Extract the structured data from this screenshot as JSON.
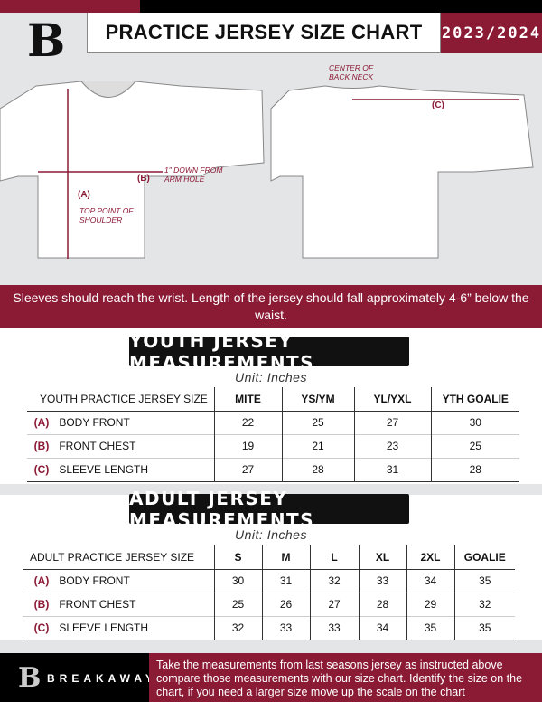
{
  "header": {
    "title": "PRACTICE JERSEY SIZE CHART",
    "season": "2023/2024",
    "logo_letter": "B"
  },
  "diagram": {
    "front_labels": {
      "b": "(B)",
      "b_note": "1\" DOWN FROM ARM HOLE",
      "a": "(A)",
      "a_note": "TOP POINT OF SHOULDER"
    },
    "back_labels": {
      "center": "CENTER OF BACK NECK",
      "c": "(C)"
    }
  },
  "instructions": "Sleeves should reach the wrist. Length of the jersey should fall approximately 4-6” below the waist.",
  "youth": {
    "title": "YOUTH JERSEY MEASUREMENTS",
    "unit": "Unit: Inches",
    "headers": [
      "YOUTH PRACTICE JERSEY SIZE",
      "MITE",
      "YS/YM",
      "YL/YXL",
      "YTH GOALIE"
    ],
    "rows": [
      {
        "letter": "(A)",
        "label": "BODY FRONT",
        "values": [
          "22",
          "25",
          "27",
          "30"
        ]
      },
      {
        "letter": "(B)",
        "label": "FRONT CHEST",
        "values": [
          "19",
          "21",
          "23",
          "25"
        ]
      },
      {
        "letter": "(C)",
        "label": "SLEEVE LENGTH",
        "values": [
          "27",
          "28",
          "31",
          "28"
        ]
      }
    ]
  },
  "adult": {
    "title": "ADULT JERSEY MEASUREMENTS",
    "unit": "Unit: Inches",
    "headers": [
      "ADULT PRACTICE JERSEY SIZE",
      "S",
      "M",
      "L",
      "XL",
      "2XL",
      "GOALIE"
    ],
    "rows": [
      {
        "letter": "(A)",
        "label": "BODY FRONT",
        "values": [
          "30",
          "31",
          "32",
          "33",
          "34",
          "35"
        ]
      },
      {
        "letter": "(B)",
        "label": "FRONT CHEST",
        "values": [
          "25",
          "26",
          "27",
          "28",
          "29",
          "32"
        ]
      },
      {
        "letter": "(C)",
        "label": "SLEEVE LENGTH",
        "values": [
          "32",
          "33",
          "33",
          "34",
          "35",
          "35"
        ]
      }
    ]
  },
  "footer": {
    "brand": "BREAKAWAY",
    "text": "Take the measurements from last seasons jersey as instructed above compare those measurements  with our size chart. Identify the size on the chart, if you need a larger size move up the scale on the chart"
  },
  "colors": {
    "accent": "#8b1a35",
    "dark": "#000000",
    "grey": "#e4e5e7"
  }
}
